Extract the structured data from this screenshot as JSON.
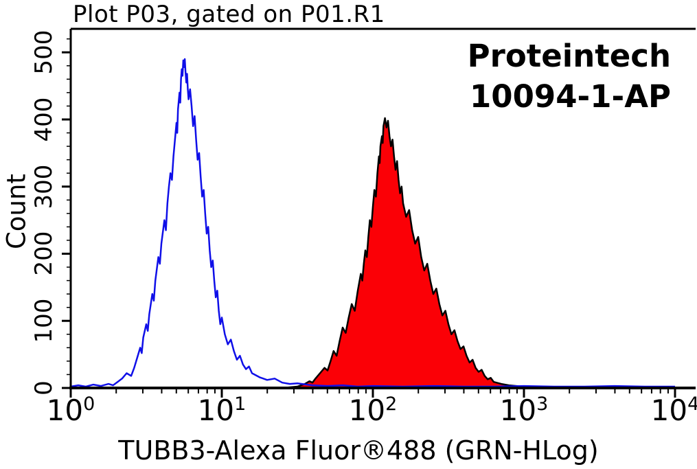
{
  "title": "Plot P03, gated on P01.R1",
  "annotation": {
    "vendor": "Proteintech",
    "catalog": "10094-1-AP"
  },
  "axes": {
    "x_label": "TUBB3-Alexa Fluor®488 (GRN-HLog)",
    "y_label": "Count",
    "x_ticks": [
      {
        "base": "10",
        "exp": "0"
      },
      {
        "base": "10",
        "exp": "1"
      },
      {
        "base": "10",
        "exp": "2"
      },
      {
        "base": "10",
        "exp": "3"
      },
      {
        "base": "10",
        "exp": "4"
      }
    ],
    "y_ticks": [
      "0",
      "100",
      "200",
      "300",
      "400",
      "500"
    ]
  },
  "colors": {
    "background": "#ffffff",
    "axis": "#000000",
    "text": "#000000",
    "blue_curve": "#0f0fe8",
    "red_fill": "#fb0006",
    "red_outline": "#000000"
  },
  "chart_data": {
    "type": "area",
    "subtype": "flow-cytometry-overlay-histogram",
    "title": "Plot P03, gated on P01.R1",
    "xlabel": "TUBB3-Alexa Fluor®488 (GRN-HLog)",
    "ylabel": "Count",
    "x_scale": "log10",
    "xlim": [
      1,
      10000
    ],
    "ylim": [
      0,
      535
    ],
    "x_major_ticks": [
      1,
      10,
      100,
      1000,
      10000
    ],
    "y_major_ticks": [
      0,
      100,
      200,
      300,
      400,
      500
    ],
    "grid": "off",
    "legend": "none",
    "points_format": "[log10(x), count]",
    "series": [
      {
        "id": "series-tubb3",
        "name": "TUBB3-Alexa Fluor 488 stained (red filled, black outline)",
        "stroke": "#000000",
        "fill": "#fb0006",
        "points": [
          [
            1.4,
            0
          ],
          [
            1.45,
            1
          ],
          [
            1.5,
            2
          ],
          [
            1.55,
            6
          ],
          [
            1.58,
            10
          ],
          [
            1.6,
            8
          ],
          [
            1.62,
            14
          ],
          [
            1.65,
            22
          ],
          [
            1.68,
            30
          ],
          [
            1.7,
            26
          ],
          [
            1.72,
            40
          ],
          [
            1.74,
            55
          ],
          [
            1.76,
            48
          ],
          [
            1.78,
            70
          ],
          [
            1.8,
            90
          ],
          [
            1.82,
            82
          ],
          [
            1.84,
            105
          ],
          [
            1.86,
            125
          ],
          [
            1.88,
            115
          ],
          [
            1.9,
            145
          ],
          [
            1.92,
            170
          ],
          [
            1.93,
            160
          ],
          [
            1.94,
            185
          ],
          [
            1.95,
            205
          ],
          [
            1.96,
            195
          ],
          [
            1.97,
            225
          ],
          [
            1.98,
            250
          ],
          [
            1.99,
            240
          ],
          [
            2.0,
            270
          ],
          [
            2.01,
            295
          ],
          [
            2.02,
            285
          ],
          [
            2.03,
            320
          ],
          [
            2.04,
            345
          ],
          [
            2.045,
            335
          ],
          [
            2.05,
            360
          ],
          [
            2.06,
            375
          ],
          [
            2.065,
            365
          ],
          [
            2.07,
            390
          ],
          [
            2.08,
            402
          ],
          [
            2.09,
            388
          ],
          [
            2.1,
            398
          ],
          [
            2.11,
            375
          ],
          [
            2.12,
            360
          ],
          [
            2.13,
            370
          ],
          [
            2.14,
            345
          ],
          [
            2.15,
            325
          ],
          [
            2.16,
            338
          ],
          [
            2.17,
            310
          ],
          [
            2.18,
            290
          ],
          [
            2.19,
            300
          ],
          [
            2.2,
            275
          ],
          [
            2.22,
            255
          ],
          [
            2.24,
            265
          ],
          [
            2.26,
            235
          ],
          [
            2.28,
            215
          ],
          [
            2.3,
            225
          ],
          [
            2.32,
            195
          ],
          [
            2.34,
            175
          ],
          [
            2.36,
            185
          ],
          [
            2.38,
            160
          ],
          [
            2.4,
            140
          ],
          [
            2.42,
            148
          ],
          [
            2.44,
            125
          ],
          [
            2.46,
            108
          ],
          [
            2.48,
            115
          ],
          [
            2.5,
            95
          ],
          [
            2.52,
            80
          ],
          [
            2.54,
            86
          ],
          [
            2.56,
            70
          ],
          [
            2.58,
            58
          ],
          [
            2.6,
            62
          ],
          [
            2.62,
            48
          ],
          [
            2.64,
            38
          ],
          [
            2.66,
            42
          ],
          [
            2.68,
            30
          ],
          [
            2.7,
            24
          ],
          [
            2.72,
            27
          ],
          [
            2.74,
            18
          ],
          [
            2.76,
            13
          ],
          [
            2.78,
            15
          ],
          [
            2.8,
            9
          ],
          [
            2.85,
            6
          ],
          [
            2.9,
            4
          ],
          [
            2.95,
            3
          ],
          [
            3.0,
            2
          ],
          [
            3.1,
            1
          ],
          [
            3.2,
            1
          ]
        ]
      },
      {
        "id": "series-control",
        "name": "control (blue open histogram)",
        "stroke": "#0f0fe8",
        "fill": "none",
        "points": [
          [
            0.0,
            2
          ],
          [
            0.05,
            4
          ],
          [
            0.1,
            2
          ],
          [
            0.15,
            5
          ],
          [
            0.2,
            3
          ],
          [
            0.25,
            6
          ],
          [
            0.28,
            4
          ],
          [
            0.31,
            9
          ],
          [
            0.34,
            14
          ],
          [
            0.37,
            22
          ],
          [
            0.4,
            18
          ],
          [
            0.42,
            30
          ],
          [
            0.44,
            45
          ],
          [
            0.46,
            60
          ],
          [
            0.47,
            52
          ],
          [
            0.48,
            75
          ],
          [
            0.5,
            95
          ],
          [
            0.51,
            85
          ],
          [
            0.52,
            110
          ],
          [
            0.54,
            140
          ],
          [
            0.55,
            130
          ],
          [
            0.56,
            160
          ],
          [
            0.58,
            195
          ],
          [
            0.59,
            185
          ],
          [
            0.6,
            215
          ],
          [
            0.62,
            250
          ],
          [
            0.63,
            235
          ],
          [
            0.64,
            275
          ],
          [
            0.65,
            300
          ],
          [
            0.66,
            320
          ],
          [
            0.67,
            310
          ],
          [
            0.68,
            345
          ],
          [
            0.69,
            370
          ],
          [
            0.7,
            395
          ],
          [
            0.705,
            380
          ],
          [
            0.71,
            415
          ],
          [
            0.72,
            440
          ],
          [
            0.725,
            425
          ],
          [
            0.73,
            460
          ],
          [
            0.735,
            475
          ],
          [
            0.74,
            465
          ],
          [
            0.745,
            488
          ],
          [
            0.75,
            478
          ],
          [
            0.755,
            490
          ],
          [
            0.76,
            470
          ],
          [
            0.765,
            455
          ],
          [
            0.77,
            468
          ],
          [
            0.775,
            445
          ],
          [
            0.78,
            430
          ],
          [
            0.79,
            445
          ],
          [
            0.8,
            420
          ],
          [
            0.81,
            390
          ],
          [
            0.82,
            405
          ],
          [
            0.83,
            370
          ],
          [
            0.84,
            340
          ],
          [
            0.85,
            350
          ],
          [
            0.86,
            315
          ],
          [
            0.87,
            285
          ],
          [
            0.88,
            295
          ],
          [
            0.89,
            260
          ],
          [
            0.9,
            230
          ],
          [
            0.91,
            240
          ],
          [
            0.92,
            205
          ],
          [
            0.93,
            180
          ],
          [
            0.94,
            190
          ],
          [
            0.95,
            160
          ],
          [
            0.96,
            135
          ],
          [
            0.97,
            145
          ],
          [
            0.98,
            115
          ],
          [
            0.99,
            95
          ],
          [
            1.0,
            105
          ],
          [
            1.02,
            80
          ],
          [
            1.04,
            65
          ],
          [
            1.06,
            72
          ],
          [
            1.08,
            55
          ],
          [
            1.1,
            42
          ],
          [
            1.12,
            48
          ],
          [
            1.14,
            35
          ],
          [
            1.16,
            28
          ],
          [
            1.18,
            32
          ],
          [
            1.2,
            22
          ],
          [
            1.25,
            16
          ],
          [
            1.3,
            12
          ],
          [
            1.35,
            14
          ],
          [
            1.4,
            8
          ],
          [
            1.45,
            6
          ],
          [
            1.5,
            7
          ],
          [
            1.6,
            4
          ],
          [
            1.7,
            3
          ],
          [
            1.8,
            4
          ],
          [
            1.9,
            2
          ],
          [
            2.0,
            3
          ],
          [
            2.2,
            2
          ],
          [
            2.4,
            3
          ],
          [
            2.6,
            2
          ],
          [
            2.8,
            2
          ],
          [
            3.0,
            3
          ],
          [
            3.2,
            2
          ],
          [
            3.4,
            2
          ],
          [
            3.6,
            3
          ],
          [
            3.8,
            2
          ],
          [
            4.0,
            2
          ]
        ]
      }
    ]
  }
}
